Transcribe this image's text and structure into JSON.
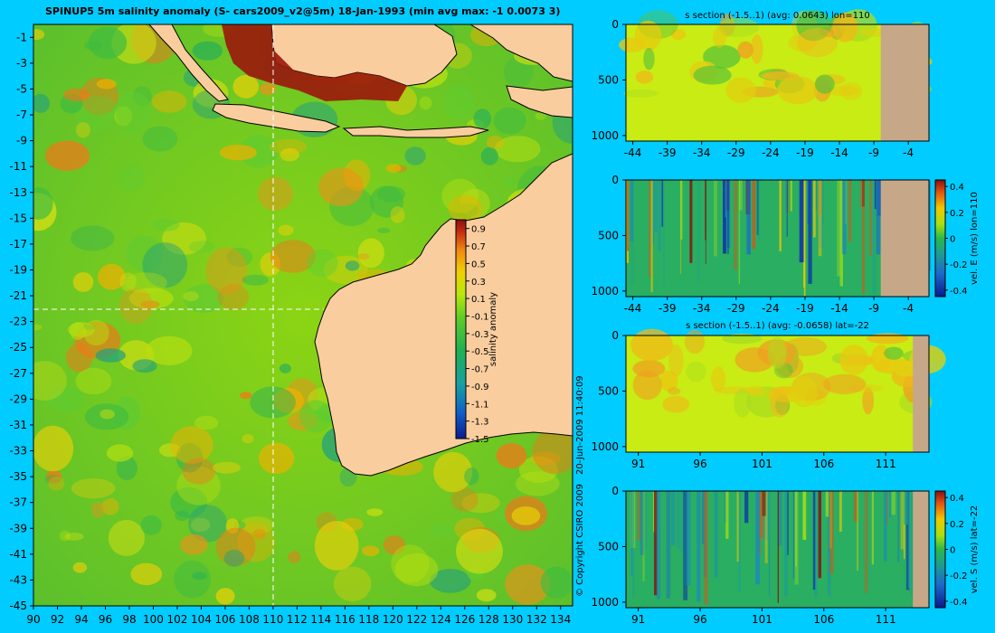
{
  "main_title": "SPINUP5 5m salinity anomaly  (S- cars2009_v2@5m) 18-Jan-1993  (min avg max: -1 0.0073 3)",
  "copyright": "© Copyright CSIRO 2009",
  "timestamp": "20-Jun-2009 11:40:09",
  "colors": {
    "background": "#00ccff",
    "land": "#f9cd9e",
    "section_land": "#c6a888"
  },
  "chart_data": [
    {
      "id": "map",
      "type": "heatmap",
      "title": "SPINUP5 5m salinity anomaly  (S- cars2009_v2@5m) 18-Jan-1993  (min avg max: -1 0.0073 3)",
      "x_ticks": [
        "90",
        "92",
        "94",
        "96",
        "98",
        "100",
        "102",
        "104",
        "106",
        "108",
        "110",
        "112",
        "114",
        "116",
        "118",
        "120",
        "122",
        "124",
        "126",
        "128",
        "130",
        "132",
        "134"
      ],
      "y_ticks": [
        "-1",
        "-3",
        "-5",
        "-7",
        "-9",
        "-11",
        "-13",
        "-15",
        "-17",
        "-19",
        "-21",
        "-23",
        "-25",
        "-27",
        "-29",
        "-31",
        "-33",
        "-35",
        "-37",
        "-39",
        "-41",
        "-43",
        "-45"
      ],
      "xlim": [
        90,
        135
      ],
      "ylim": [
        -45,
        0
      ],
      "crosshair": {
        "lon": 110,
        "lat": -22
      },
      "colorbar": {
        "label": "salinity anomaly",
        "ticks": [
          "0.9",
          "0.7",
          "0.5",
          "0.3",
          "0.1",
          "-0.1",
          "-0.3",
          "-0.5",
          "-0.7",
          "-0.9",
          "-1.1",
          "-1.3",
          "-1.5"
        ],
        "range": [
          -1.5,
          1.0
        ]
      }
    },
    {
      "id": "section-s-lon110",
      "type": "heatmap",
      "title": "s section (-1.5..1) (avg: 0.0643) lon=110",
      "x_ticks": [
        "-44",
        "-39",
        "-34",
        "-29",
        "-24",
        "-19",
        "-14",
        "-9",
        "-4"
      ],
      "y_ticks": [
        "0",
        "500",
        "1000"
      ],
      "xlim": [
        -45,
        -1
      ],
      "ylim": [
        1050,
        0
      ],
      "land_from_x": -8
    },
    {
      "id": "section-vel-e-lon110",
      "type": "heatmap",
      "title": "",
      "x_ticks": [
        "-44",
        "-39",
        "-34",
        "-29",
        "-24",
        "-19",
        "-14",
        "-9",
        "-4"
      ],
      "y_ticks": [
        "0",
        "500",
        "1000"
      ],
      "xlim": [
        -45,
        -1
      ],
      "ylim": [
        1050,
        0
      ],
      "land_from_x": -8,
      "colorbar": {
        "label": "vel. E (m/s) lon=110",
        "ticks": [
          "0.4",
          "0.2",
          "0",
          "-0.2",
          "-0.4"
        ],
        "range": [
          -0.45,
          0.45
        ]
      }
    },
    {
      "id": "section-s-lat-22",
      "type": "heatmap",
      "title": "s section (-1.5..1) (avg: -0.0658) lat=-22",
      "x_ticks": [
        "91",
        "96",
        "101",
        "106",
        "111"
      ],
      "y_ticks": [
        "0",
        "500",
        "1000"
      ],
      "xlim": [
        90,
        114.5
      ],
      "ylim": [
        1050,
        0
      ],
      "land_from_x": 113.2
    },
    {
      "id": "section-vel-s-lat-22",
      "type": "heatmap",
      "title": "",
      "x_ticks": [
        "91",
        "96",
        "101",
        "106",
        "111"
      ],
      "y_ticks": [
        "0",
        "500",
        "1000"
      ],
      "xlim": [
        90,
        114.5
      ],
      "ylim": [
        1050,
        0
      ],
      "land_from_x": 113.2,
      "colorbar": {
        "label": "vel. S (m/s) lat=-22",
        "ticks": [
          "0.4",
          "0.2",
          "0",
          "-0.2",
          "-0.4"
        ],
        "range": [
          -0.45,
          0.45
        ]
      }
    }
  ]
}
